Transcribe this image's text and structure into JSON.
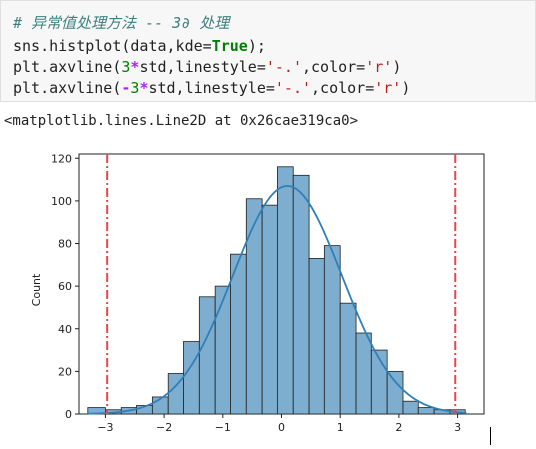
{
  "code_cell": {
    "comment": "# 异常值处理方法 -- 3∂ 处理",
    "line1": {
      "a": "sns.histplot(data,kde=",
      "kw": "True",
      "b": ");"
    },
    "line2": {
      "a": "plt.axvline(",
      "num": "3",
      "op": "*",
      "b": "std,linestyle=",
      "s1": "'-.'",
      "c": ",color=",
      "s2": "'r'",
      "d": ")"
    },
    "line3": {
      "a": "plt.axvline(",
      "op1": "-",
      "num": "3",
      "op2": "*",
      "b": "std,linestyle=",
      "s1": "'-.'",
      "c": ",color=",
      "s2": "'r'",
      "d": ")"
    }
  },
  "output_text": "<matplotlib.lines.Line2D at 0x26cae319ca0>",
  "chart_data": {
    "type": "bar",
    "ylabel": "Count",
    "xlabel": "",
    "xlim": [
      -3.45,
      3.45
    ],
    "ylim": [
      0,
      122
    ],
    "xticks": [
      -3,
      -2,
      -1,
      0,
      1,
      2,
      3
    ],
    "yticks": [
      0,
      20,
      40,
      60,
      80,
      100,
      120
    ],
    "bins": [
      {
        "x0": -3.3,
        "x1": -3.0,
        "count": 3
      },
      {
        "x0": -3.0,
        "x1": -2.73,
        "count": 2
      },
      {
        "x0": -2.73,
        "x1": -2.47,
        "count": 3
      },
      {
        "x0": -2.47,
        "x1": -2.2,
        "count": 4
      },
      {
        "x0": -2.2,
        "x1": -1.93,
        "count": 8
      },
      {
        "x0": -1.93,
        "x1": -1.67,
        "count": 19
      },
      {
        "x0": -1.67,
        "x1": -1.4,
        "count": 34
      },
      {
        "x0": -1.4,
        "x1": -1.13,
        "count": 55
      },
      {
        "x0": -1.13,
        "x1": -0.87,
        "count": 60
      },
      {
        "x0": -0.87,
        "x1": -0.6,
        "count": 75
      },
      {
        "x0": -0.6,
        "x1": -0.33,
        "count": 101
      },
      {
        "x0": -0.33,
        "x1": -0.07,
        "count": 98
      },
      {
        "x0": -0.07,
        "x1": 0.2,
        "count": 116
      },
      {
        "x0": 0.2,
        "x1": 0.47,
        "count": 112
      },
      {
        "x0": 0.47,
        "x1": 0.73,
        "count": 73
      },
      {
        "x0": 0.73,
        "x1": 1.0,
        "count": 79
      },
      {
        "x0": 1.0,
        "x1": 1.27,
        "count": 52
      },
      {
        "x0": 1.27,
        "x1": 1.53,
        "count": 38
      },
      {
        "x0": 1.53,
        "x1": 1.8,
        "count": 30
      },
      {
        "x0": 1.8,
        "x1": 2.07,
        "count": 20
      },
      {
        "x0": 2.07,
        "x1": 2.33,
        "count": 6
      },
      {
        "x0": 2.33,
        "x1": 2.6,
        "count": 3
      },
      {
        "x0": 2.6,
        "x1": 2.87,
        "count": 2
      },
      {
        "x0": 2.87,
        "x1": 3.13,
        "count": 2
      }
    ],
    "kde": {
      "peak": 107,
      "mean": 0.1,
      "sd": 0.93
    },
    "vlines": [
      {
        "x": -2.97,
        "style": "dashdot",
        "color": "#e8464b"
      },
      {
        "x": 2.96,
        "style": "dashdot",
        "color": "#e8464b"
      }
    ],
    "colors": {
      "bar_fill": "#7eaecf",
      "bar_edge": "#1f1f1f",
      "kde": "#2f7fb8"
    }
  }
}
